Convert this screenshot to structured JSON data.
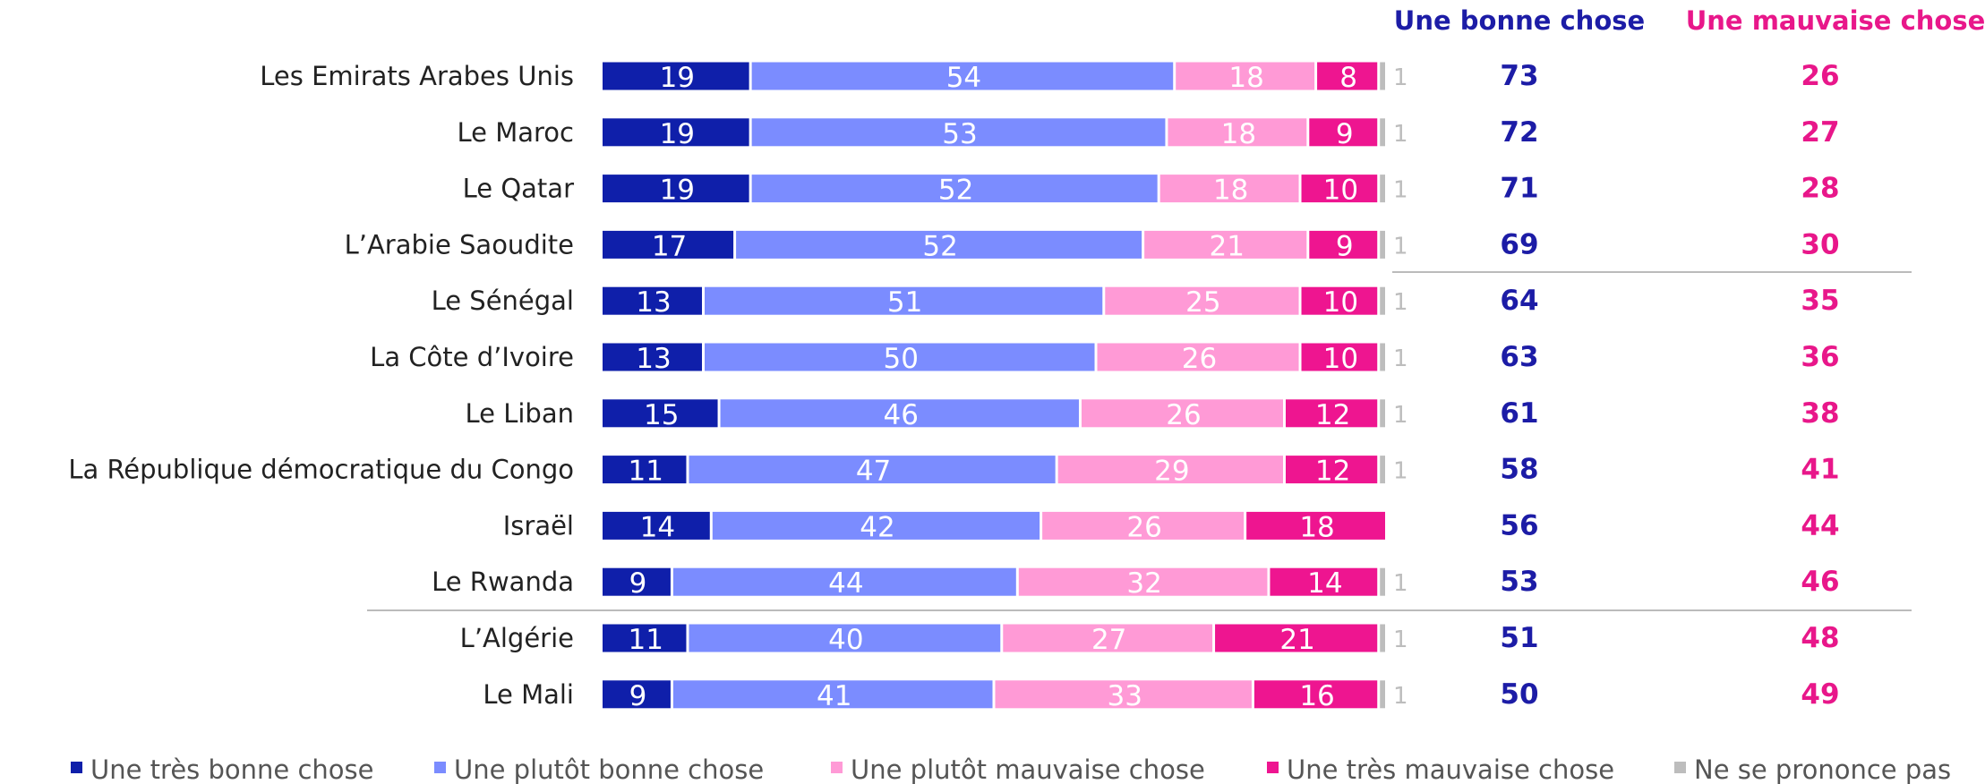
{
  "chart_data": {
    "type": "bar",
    "orientation": "horizontal",
    "stacked": true,
    "categories": [
      "Les Emirats Arabes Unis",
      "Le Maroc",
      "Le Qatar",
      "L’Arabie Saoudite",
      "Le Sénégal",
      "La Côte d’Ivoire",
      "Le Liban",
      "La République démocratique du Congo",
      "Israël",
      "Le Rwanda",
      "L’Algérie",
      "Le Mali"
    ],
    "series": [
      {
        "name": "Une très bonne chose",
        "color": "#0f1faa",
        "values": [
          19,
          19,
          19,
          17,
          13,
          13,
          15,
          11,
          14,
          9,
          11,
          9
        ]
      },
      {
        "name": "Une plutôt bonne chose",
        "color": "#7b8cff",
        "values": [
          54,
          53,
          52,
          52,
          51,
          50,
          46,
          47,
          42,
          44,
          40,
          41
        ]
      },
      {
        "name": "Une plutôt mauvaise chose",
        "color": "#ff9ad6",
        "values": [
          18,
          18,
          18,
          21,
          25,
          26,
          26,
          29,
          26,
          32,
          27,
          33
        ]
      },
      {
        "name": "Une très mauvaise chose",
        "color": "#ee1590",
        "values": [
          8,
          9,
          10,
          9,
          10,
          10,
          12,
          12,
          18,
          14,
          21,
          16
        ]
      },
      {
        "name": "Ne se prononce pas",
        "color": "#bdbdbd",
        "values": [
          1,
          1,
          1,
          1,
          1,
          1,
          1,
          1,
          null,
          1,
          1,
          1
        ]
      }
    ],
    "summary_columns": [
      {
        "name": "Une bonne chose",
        "color": "#1c1ca6",
        "values": [
          73,
          72,
          71,
          69,
          64,
          63,
          61,
          58,
          56,
          53,
          51,
          50
        ]
      },
      {
        "name": "Une mauvaise chose",
        "color": "#e8178a",
        "values": [
          26,
          27,
          28,
          30,
          35,
          36,
          38,
          41,
          44,
          46,
          48,
          49
        ]
      }
    ]
  }
}
